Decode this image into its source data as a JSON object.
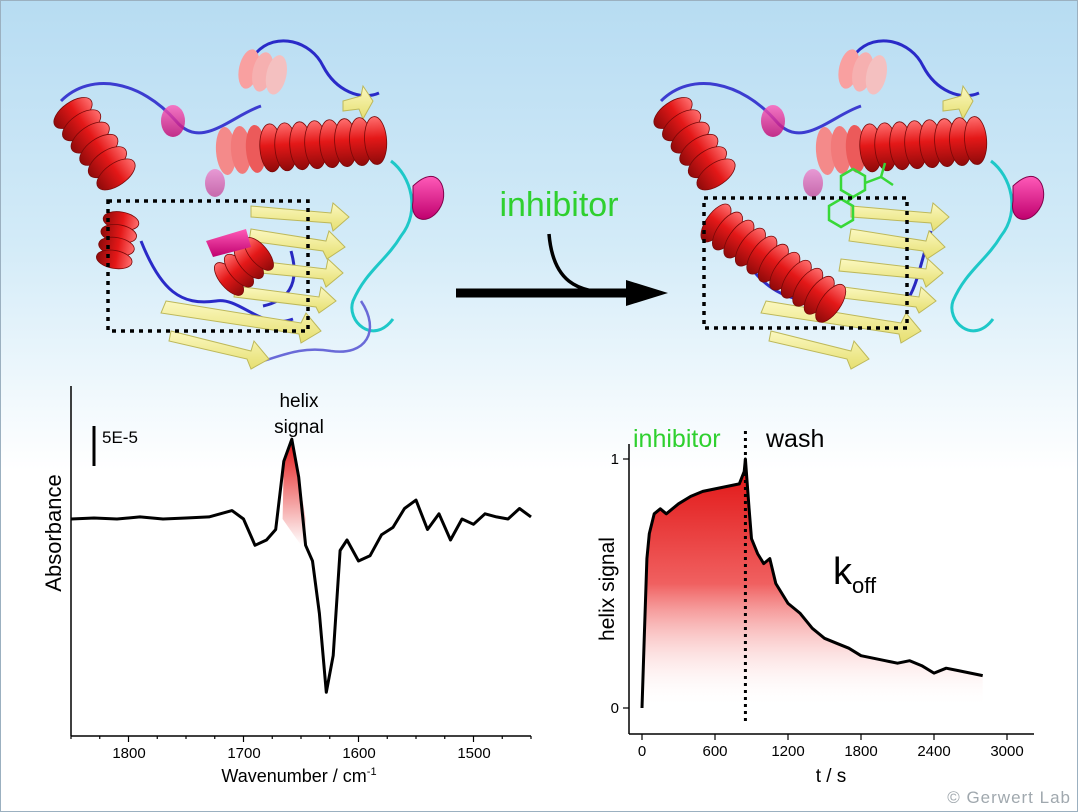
{
  "arrow_label": "inhibitor",
  "spectrum": {
    "ylabel": "Absorbance",
    "xlabel": "Wavenumber / cm",
    "xlabel_sup": "-1",
    "scalebar_label": "5E-5",
    "annotation_line1": "helix",
    "annotation_line2": "signal",
    "xticks": [
      "1800",
      "1700",
      "1600",
      "1500"
    ]
  },
  "kinetics": {
    "ylabel": "helix signal",
    "xlabel": "t / s",
    "phase1_label": "inhibitor",
    "phase2_label": "wash",
    "rate_label": "k",
    "rate_sub": "off",
    "yticks": [
      "0",
      "1"
    ],
    "xticks": [
      "0",
      "600",
      "1200",
      "1800",
      "2400",
      "3000"
    ]
  },
  "watermark": "© Gerwert Lab",
  "colors": {
    "inhibitor_green": "#2fd02f",
    "helix_red": "#e01818",
    "strand_yellow": "#f0ec8c",
    "line_black": "#000000"
  },
  "chart_data": [
    {
      "type": "line",
      "title": "",
      "xlabel": "Wavenumber / cm-1",
      "ylabel": "Absorbance",
      "x_reversed": true,
      "xlim": [
        1850,
        1450
      ],
      "xticks": [
        1800,
        1700,
        1600,
        1500
      ],
      "series": [
        {
          "x": [
            1850,
            1830,
            1810,
            1790,
            1770,
            1750,
            1730,
            1710,
            1700,
            1690,
            1680,
            1672,
            1665,
            1658,
            1652,
            1646,
            1640,
            1634,
            1628,
            1622,
            1616,
            1610,
            1600,
            1590,
            1580,
            1570,
            1560,
            1550,
            1540,
            1530,
            1520,
            1510,
            1500,
            1490,
            1480,
            1470,
            1460,
            1450
          ],
          "y": [
            0.0,
            0.1,
            0.0,
            0.2,
            0.0,
            0.1,
            0.2,
            0.8,
            0.0,
            -2.5,
            -2.0,
            -1.0,
            5.5,
            7.6,
            4.0,
            -2.5,
            -4.0,
            -9.0,
            -16.5,
            -13.0,
            -3.0,
            -2.0,
            -4.0,
            -3.5,
            -1.5,
            -0.8,
            1.0,
            1.8,
            -1.0,
            0.5,
            -2.0,
            0.0,
            -0.5,
            0.5,
            0.2,
            0.0,
            1.0,
            0.2
          ]
        }
      ]
    },
    {
      "type": "line",
      "title": "",
      "xlabel": "t / s",
      "ylabel": "helix signal",
      "xlim": [
        0,
        3000
      ],
      "ylim": [
        0,
        1
      ],
      "xticks": [
        0,
        600,
        1200,
        1800,
        2400,
        3000
      ],
      "yticks": [
        0,
        1
      ],
      "phase_boundary_x": 850,
      "series": [
        {
          "x": [
            0,
            20,
            40,
            60,
            100,
            150,
            200,
            300,
            400,
            500,
            600,
            700,
            800,
            840,
            850,
            880,
            900,
            950,
            1000,
            1050,
            1100,
            1200,
            1300,
            1400,
            1500,
            1600,
            1700,
            1800,
            1900,
            2000,
            2100,
            2200,
            2300,
            2400,
            2500,
            2600,
            2700,
            2800
          ],
          "y": [
            0.0,
            0.3,
            0.6,
            0.7,
            0.78,
            0.8,
            0.78,
            0.82,
            0.85,
            0.87,
            0.88,
            0.89,
            0.9,
            0.95,
            1.0,
            0.8,
            0.68,
            0.62,
            0.58,
            0.6,
            0.5,
            0.42,
            0.38,
            0.32,
            0.28,
            0.26,
            0.24,
            0.21,
            0.2,
            0.19,
            0.18,
            0.19,
            0.17,
            0.14,
            0.16,
            0.15,
            0.14,
            0.13
          ]
        }
      ]
    }
  ]
}
